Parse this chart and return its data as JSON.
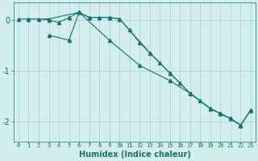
{
  "xlabel": "Humidex (Indice chaleur)",
  "ylabel": "",
  "background_color": "#d4eded",
  "grid_color": "#aacfcf",
  "line_color": "#1a7070",
  "xlim": [
    -0.5,
    23.5
  ],
  "ylim": [
    -2.4,
    0.35
  ],
  "yticks": [
    -2,
    -1,
    0
  ],
  "xticks": [
    0,
    1,
    2,
    3,
    4,
    5,
    6,
    7,
    8,
    9,
    10,
    11,
    12,
    13,
    14,
    15,
    16,
    17,
    18,
    19,
    20,
    21,
    22,
    23
  ],
  "lines": [
    {
      "x": [
        0,
        1,
        2,
        3,
        4,
        5,
        6,
        7,
        8,
        9,
        10,
        11,
        12,
        13,
        14,
        15,
        16,
        17,
        18,
        19,
        20,
        21,
        22,
        23
      ],
      "y": [
        0.02,
        0.02,
        0.02,
        0.0,
        -0.05,
        0.05,
        0.15,
        0.05,
        0.05,
        0.05,
        0.02,
        -0.2,
        -0.45,
        -0.65,
        -0.85,
        -1.05,
        -1.25,
        -1.45,
        -1.6,
        -1.75,
        -1.85,
        -1.95,
        -2.08,
        -1.78
      ],
      "marker": "^",
      "markersize": 3.0
    },
    {
      "x": [
        1,
        3,
        6,
        7,
        9,
        10,
        13,
        15,
        17,
        19,
        20,
        21,
        22,
        23
      ],
      "y": [
        0.02,
        0.02,
        0.15,
        0.05,
        0.05,
        0.02,
        -0.65,
        -1.05,
        -1.45,
        -1.75,
        -1.85,
        -1.95,
        -2.08,
        -1.78
      ],
      "marker": "^",
      "markersize": 3.0
    },
    {
      "x": [
        3,
        5,
        6,
        9,
        12,
        15,
        17,
        19,
        20,
        21,
        22,
        23
      ],
      "y": [
        -0.3,
        -0.4,
        0.15,
        -0.4,
        -0.9,
        -1.2,
        -1.45,
        -1.75,
        -1.85,
        -1.95,
        -2.08,
        -1.78
      ],
      "marker": "^",
      "markersize": 3.0
    }
  ]
}
